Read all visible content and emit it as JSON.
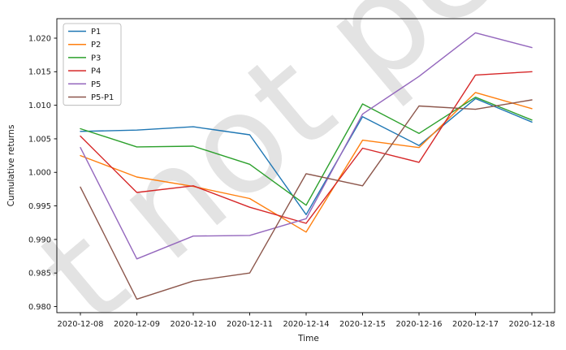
{
  "figure": {
    "background": "#ffffff",
    "watermark_text": "t not peer",
    "watermark_color": "#e3e3e3"
  },
  "chart_data": {
    "type": "line",
    "title": "",
    "xlabel": "Time",
    "ylabel": "Cumulative returns",
    "x_tick_labels": [
      "2020-12-08",
      "2020-12-09",
      "2020-12-10",
      "2020-12-11",
      "2020-12-14",
      "2020-12-15",
      "2020-12-16",
      "2020-12-17",
      "2020-12-18"
    ],
    "y_ticks": [
      0.98,
      0.985,
      0.99,
      0.995,
      1.0,
      1.005,
      1.01,
      1.015,
      1.02
    ],
    "y_tick_labels": [
      "0.980",
      "0.985",
      "0.990",
      "0.995",
      "1.000",
      "1.005",
      "1.010",
      "1.015",
      "1.020"
    ],
    "ylim": [
      0.979,
      1.023
    ],
    "grid": false,
    "legend": {
      "position": "upper left"
    },
    "series": [
      {
        "name": "P1",
        "color": "#1f77b4",
        "values": [
          1.0061,
          1.0063,
          1.0068,
          1.0056,
          0.9937,
          1.0083,
          1.004,
          1.011,
          1.0075
        ]
      },
      {
        "name": "P2",
        "color": "#ff7f0e",
        "values": [
          1.0025,
          0.9993,
          0.9979,
          0.9961,
          0.9911,
          1.0048,
          1.0037,
          1.0119,
          1.0095
        ]
      },
      {
        "name": "P3",
        "color": "#2ca02c",
        "values": [
          1.0065,
          1.0038,
          1.0039,
          1.0012,
          0.9951,
          1.0102,
          1.0058,
          1.0112,
          1.0078
        ]
      },
      {
        "name": "P4",
        "color": "#d62728",
        "values": [
          1.0054,
          0.997,
          0.998,
          0.9948,
          0.9924,
          1.0036,
          1.0015,
          1.0145,
          1.015
        ]
      },
      {
        "name": "P5",
        "color": "#9467bd",
        "values": [
          1.0037,
          0.9871,
          0.9905,
          0.9906,
          0.9931,
          1.0087,
          1.0143,
          1.0208,
          1.0186
        ]
      },
      {
        "name": "P5-P1",
        "color": "#8c564b",
        "values": [
          0.9978,
          0.9811,
          0.9838,
          0.985,
          0.9998,
          0.998,
          1.0099,
          1.0094,
          1.0108
        ]
      }
    ]
  }
}
